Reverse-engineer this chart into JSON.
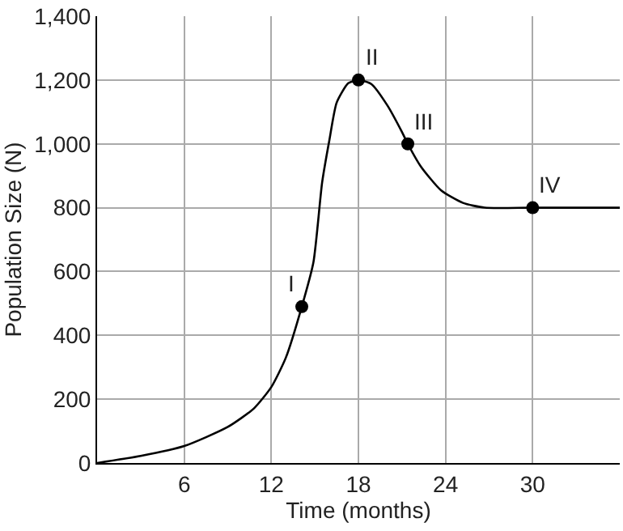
{
  "chart_data": {
    "type": "line",
    "xlabel": "Time (months)",
    "ylabel": "Population Size (N)",
    "xlim": [
      0,
      36
    ],
    "xticks": [
      6,
      12,
      18,
      24,
      30
    ],
    "ylim": [
      0,
      1400
    ],
    "yticks": [
      0,
      200,
      400,
      600,
      800,
      {
        "value": 1000,
        "label": "1,000"
      },
      {
        "value": 1200,
        "label": "1,200"
      },
      {
        "value": 1400,
        "label": "1,400"
      }
    ],
    "grid": true,
    "series": [
      {
        "color": "#000000",
        "marker": "none",
        "line_style": "solid",
        "x": [
          0,
          3,
          6,
          9,
          10.8,
          12,
          13,
          14.1,
          14.9,
          15.5,
          16,
          16.5,
          17.3,
          18,
          18.9,
          20,
          21,
          21.4,
          22.3,
          23.7,
          25.2,
          26.7,
          30,
          36
        ],
        "values": [
          0,
          22,
          53,
          113,
          171,
          238,
          330,
          490,
          629,
          879,
          1012,
          1129,
          1190,
          1200,
          1187,
          1120,
          1037,
          1000,
          929,
          854,
          815,
          800,
          800,
          800
        ]
      },
      {
        "type": "scatter",
        "color": "#000000",
        "marker": "circle",
        "x": [
          14.1,
          18,
          21.4,
          30
        ],
        "values": [
          490,
          1200,
          1000,
          800
        ]
      }
    ],
    "annotations": [
      {
        "text": "I",
        "x": 14.1,
        "y": 490
      },
      {
        "text": "II",
        "x": 18,
        "y": 1200
      },
      {
        "text": "III",
        "x": 21.4,
        "y": 1000
      },
      {
        "text": "IV",
        "x": 30,
        "y": 800
      }
    ]
  }
}
